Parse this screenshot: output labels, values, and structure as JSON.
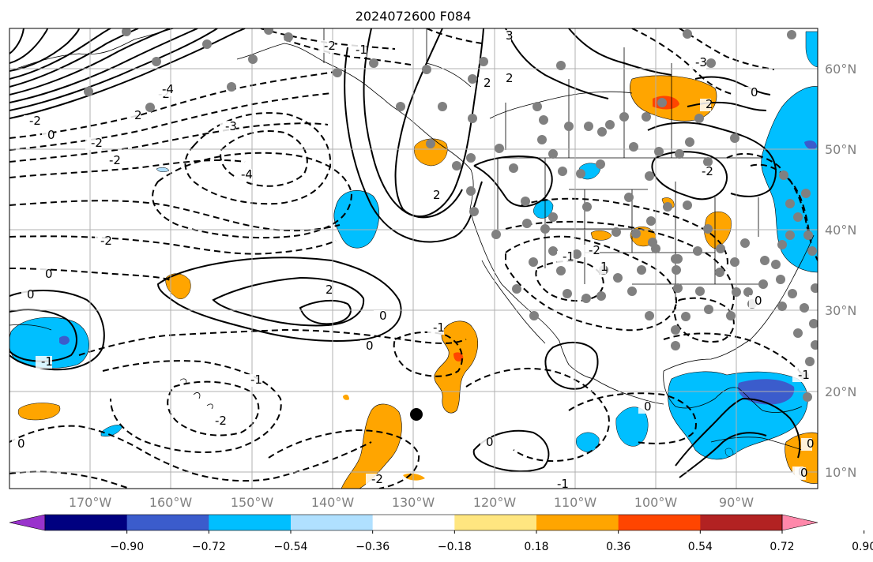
{
  "title": "2024072600 F084",
  "lat_labels": [
    "60°N",
    "50°N",
    "40°N",
    "30°N",
    "20°N",
    "10°N"
  ],
  "lon_labels": [
    "170°W",
    "160°W",
    "150°W",
    "140°W",
    "130°W",
    "120°W",
    "110°W",
    "100°W",
    "90°W"
  ],
  "colorbar": {
    "tick_labels": [
      "−0.90",
      "−0.72",
      "−0.54",
      "−0.36",
      "−0.18",
      "0.18",
      "0.36",
      "0.54",
      "0.72",
      "0.90"
    ],
    "colors": [
      "#9933cc",
      "#000080",
      "#3b5ccc",
      "#00bfff",
      "#b0e0ff",
      "#ffffff",
      "#ffe680",
      "#ffa500",
      "#ff4500",
      "#b22222",
      "#ff88aa"
    ]
  },
  "contour_labels": [
    "-2",
    "2",
    "3",
    "-2",
    "-4",
    "-4",
    "-3",
    "-2",
    "-1",
    "0",
    "-2",
    "0",
    "-1",
    "0",
    "-2",
    "-4",
    "-3",
    "-2",
    "2",
    "2",
    "2",
    "0",
    "-2",
    "0",
    "-1",
    "-2",
    "0",
    "-1",
    "0",
    "-1",
    "-2",
    "-2",
    "2",
    "0",
    "1",
    "-1",
    "0",
    "0",
    "0",
    "-1",
    "0",
    "2",
    "0"
  ],
  "colors": {
    "station": "#808080",
    "grid": "#b0b0b0",
    "ocean": "#ffffff"
  }
}
